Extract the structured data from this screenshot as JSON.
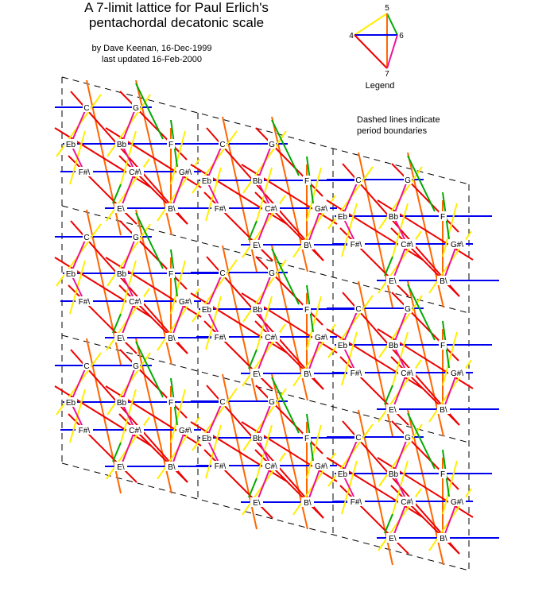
{
  "title": {
    "line1": "A 7-limit lattice for Paul Erlich's",
    "line2": "pentachordal decatonic scale"
  },
  "byline": {
    "author": "by Dave Keenan, 16-Dec-1999",
    "updated": "last updated 16-Feb-2000"
  },
  "legend": {
    "caption": "Legend",
    "label_5": "5",
    "label_4": "4",
    "label_6": "6",
    "label_7": "7"
  },
  "note": {
    "line1": "Dashed lines indicate",
    "line2": "period boundaries"
  },
  "colors": {
    "horizontal": "#0000ee",
    "vertical": "#ff6600",
    "diag_down": "#ee0000",
    "diag_up": "#ffee00",
    "magenta": "#ee1199",
    "green": "#00aa00",
    "dashed": "#000000"
  },
  "block": {
    "row_a": [
      "C",
      "G"
    ],
    "row_b": [
      "Eb",
      "Bb",
      "F"
    ],
    "row_c": [
      "F#\\",
      "C#\\",
      "G#\\"
    ],
    "row_d": [
      "E\\",
      "B\\"
    ]
  },
  "right_stub_labels": {
    "c": "C",
    "g": "G"
  }
}
